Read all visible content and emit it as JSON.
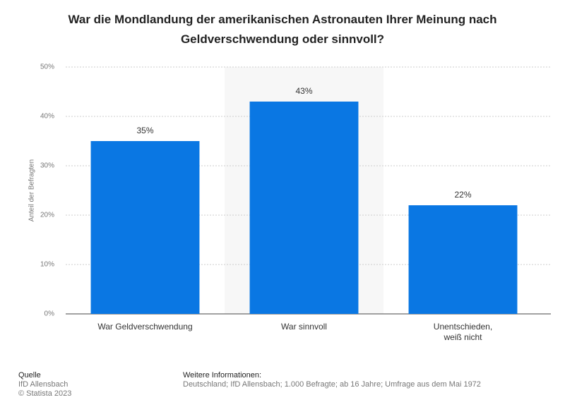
{
  "chart_data": {
    "type": "bar",
    "title": "War die Mondlandung der amerikanischen Astronauten Ihrer Meinung nach Geldverschwendung oder sinnvoll?",
    "y_label": "Anteil der Befragten",
    "categories": [
      "War Geldverschwendung",
      "War sinnvoll",
      "Unentschieden, weiß nicht"
    ],
    "values": [
      35,
      43,
      22
    ],
    "value_labels": [
      "35%",
      "43%",
      "22%"
    ],
    "color": "#0a77e3",
    "ylim": [
      0,
      50
    ],
    "yticks": [
      {
        "value": 0,
        "label": "0%"
      },
      {
        "value": 10,
        "label": "10%"
      },
      {
        "value": 20,
        "label": "20%"
      },
      {
        "value": 30,
        "label": "30%"
      },
      {
        "value": 40,
        "label": "40%"
      },
      {
        "value": 50,
        "label": "50%"
      }
    ],
    "grid": true
  },
  "footer": {
    "source_title": "Quelle",
    "source": "IfD Allensbach",
    "copyright": "© Statista 2023",
    "info_title": "Weitere Informationen:",
    "info": "Deutschland; IfD Allensbach; 1.000 Befragte; ab 16 Jahre; Umfrage aus dem Mai 1972"
  }
}
